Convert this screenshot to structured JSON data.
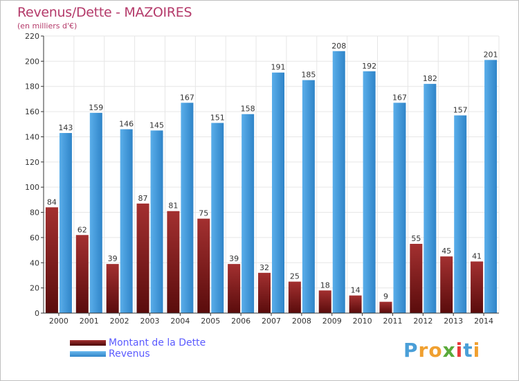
{
  "header": {
    "title": "Revenus/Dette - MAZOIRES",
    "subtitle": "(en milliers d'€)"
  },
  "legend": {
    "items": [
      {
        "label": "Montant de la Dette",
        "color": "#7a1c1c"
      },
      {
        "label": "Revenus",
        "color": "#3d96db"
      }
    ]
  },
  "logo": {
    "text": "Proxiti",
    "letters": [
      "P",
      "r",
      "o",
      "x",
      "i",
      "t",
      "i"
    ],
    "colors": [
      "#4a9fd8",
      "#f0a030",
      "#f0a030",
      "#5aaa3a",
      "#e83a3a",
      "#4a9fd8",
      "#f0a030"
    ]
  },
  "colors": {
    "title": "#b43a6a",
    "dette": "#7a1c1c",
    "revenus": "#3d96db",
    "grid": "#e6e6e6"
  },
  "chart_data": {
    "type": "bar",
    "title": "Revenus/Dette - MAZOIRES",
    "subtitle": "(en milliers d'€)",
    "categories": [
      "2000",
      "2001",
      "2002",
      "2003",
      "2004",
      "2005",
      "2006",
      "2007",
      "2008",
      "2009",
      "2010",
      "2011",
      "2012",
      "2013",
      "2014"
    ],
    "series": [
      {
        "name": "Montant de la Dette",
        "values": [
          84,
          62,
          39,
          87,
          81,
          75,
          39,
          32,
          25,
          18,
          14,
          9,
          55,
          45,
          41
        ]
      },
      {
        "name": "Revenus",
        "values": [
          143,
          159,
          146,
          145,
          167,
          151,
          158,
          191,
          185,
          208,
          192,
          167,
          182,
          157,
          201
        ]
      }
    ],
    "ylim": [
      0,
      220
    ],
    "yticks": [
      0,
      20,
      40,
      60,
      80,
      100,
      120,
      140,
      160,
      180,
      200,
      220
    ],
    "grid": true,
    "legend_position": "bottom-left"
  }
}
